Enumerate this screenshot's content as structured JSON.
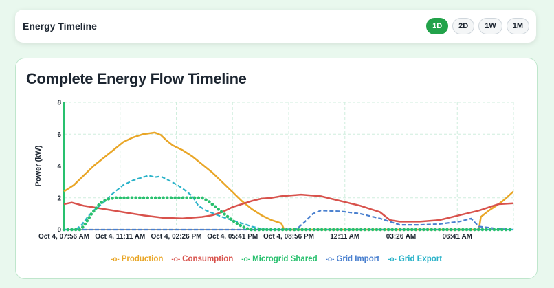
{
  "header": {
    "title": "Energy Timeline",
    "ranges": [
      {
        "label": "1D",
        "active": true
      },
      {
        "label": "2D",
        "active": false
      },
      {
        "label": "1W",
        "active": false
      },
      {
        "label": "1M",
        "active": false
      }
    ]
  },
  "chart_data": {
    "type": "line",
    "title": "Complete Energy Flow Timeline",
    "xlabel": "",
    "ylabel": "Power (kW)",
    "ylim": [
      0,
      8
    ],
    "yticks": [
      0,
      2,
      4,
      6,
      8
    ],
    "xticks": [
      "Oct 4, 07:56 AM",
      "Oct 4, 11:11 AM",
      "Oct 4, 02:26 PM",
      "Oct 4, 05:41 PM",
      "Oct 4, 08:56 PM",
      "12:11 AM",
      "03:26 AM",
      "06:41 AM"
    ],
    "xlim": [
      0,
      22.75
    ],
    "x_unit": "hours after Oct 4, 07:56 AM",
    "grid": true,
    "legend_position": "bottom",
    "series": [
      {
        "name": "Production",
        "color": "#e9a627",
        "style": "solid",
        "points": [
          [
            0,
            2.4
          ],
          [
            0.5,
            2.8
          ],
          [
            1,
            3.4
          ],
          [
            1.5,
            4.0
          ],
          [
            2,
            4.5
          ],
          [
            2.5,
            5.0
          ],
          [
            3,
            5.5
          ],
          [
            3.5,
            5.8
          ],
          [
            4,
            6.0
          ],
          [
            4.3,
            6.05
          ],
          [
            4.6,
            6.1
          ],
          [
            4.9,
            5.95
          ],
          [
            5.2,
            5.6
          ],
          [
            5.5,
            5.3
          ],
          [
            6,
            5.0
          ],
          [
            6.5,
            4.6
          ],
          [
            7,
            4.1
          ],
          [
            7.5,
            3.6
          ],
          [
            8,
            3.0
          ],
          [
            8.5,
            2.4
          ],
          [
            9,
            1.8
          ],
          [
            9.5,
            1.3
          ],
          [
            10,
            0.9
          ],
          [
            10.5,
            0.6
          ],
          [
            11,
            0.4
          ],
          [
            11.15,
            0.0
          ],
          [
            21.0,
            0.0
          ],
          [
            21.1,
            0.8
          ],
          [
            21.5,
            1.2
          ],
          [
            22,
            1.6
          ],
          [
            22.3,
            1.9
          ],
          [
            22.75,
            2.4
          ]
        ]
      },
      {
        "name": "Consumption",
        "color": "#d8524c",
        "style": "solid",
        "points": [
          [
            0,
            1.6
          ],
          [
            0.4,
            1.7
          ],
          [
            1,
            1.5
          ],
          [
            2,
            1.3
          ],
          [
            3,
            1.1
          ],
          [
            4,
            0.9
          ],
          [
            5,
            0.75
          ],
          [
            6,
            0.7
          ],
          [
            7,
            0.8
          ],
          [
            7.5,
            0.9
          ],
          [
            8,
            1.1
          ],
          [
            8.5,
            1.4
          ],
          [
            9,
            1.6
          ],
          [
            9.5,
            1.8
          ],
          [
            10,
            1.95
          ],
          [
            10.5,
            2.0
          ],
          [
            11,
            2.1
          ],
          [
            11.5,
            2.15
          ],
          [
            12,
            2.2
          ],
          [
            12.5,
            2.15
          ],
          [
            13,
            2.1
          ],
          [
            13.5,
            1.95
          ],
          [
            14,
            1.8
          ],
          [
            15,
            1.5
          ],
          [
            16,
            1.1
          ],
          [
            16.5,
            0.6
          ],
          [
            17,
            0.5
          ],
          [
            18,
            0.5
          ],
          [
            19,
            0.6
          ],
          [
            20,
            0.9
          ],
          [
            21,
            1.2
          ],
          [
            21.5,
            1.4
          ],
          [
            22,
            1.6
          ],
          [
            22.75,
            1.65
          ]
        ]
      },
      {
        "name": "Microgrid Shared",
        "color": "#28c06e",
        "style": "dots",
        "points": [
          [
            0,
            0
          ],
          [
            0.5,
            0
          ],
          [
            0.8,
            0
          ],
          [
            1,
            0.2
          ],
          [
            1.2,
            0.6
          ],
          [
            1.4,
            1.0
          ],
          [
            1.6,
            1.3
          ],
          [
            1.8,
            1.6
          ],
          [
            2,
            1.8
          ],
          [
            2.3,
            1.95
          ],
          [
            2.6,
            2.0
          ],
          [
            3,
            2.0
          ],
          [
            4,
            2.0
          ],
          [
            5,
            2.0
          ],
          [
            6,
            2.0
          ],
          [
            7,
            2.0
          ],
          [
            7.3,
            1.8
          ],
          [
            7.6,
            1.5
          ],
          [
            7.9,
            1.2
          ],
          [
            8.2,
            0.9
          ],
          [
            8.5,
            0.6
          ],
          [
            8.8,
            0.35
          ],
          [
            9.1,
            0.15
          ],
          [
            9.4,
            0
          ],
          [
            10,
            0
          ],
          [
            12,
            0
          ],
          [
            14,
            0
          ],
          [
            16,
            0
          ],
          [
            18,
            0
          ],
          [
            20,
            0
          ],
          [
            22,
            0
          ],
          [
            22.75,
            0
          ]
        ]
      },
      {
        "name": "Grid Import",
        "color": "#4a80cf",
        "style": "dashed",
        "points": [
          [
            0,
            0
          ],
          [
            9,
            0
          ],
          [
            10,
            0
          ],
          [
            11,
            0
          ],
          [
            11.8,
            0.05
          ],
          [
            12.2,
            0.5
          ],
          [
            12.6,
            1.0
          ],
          [
            13,
            1.2
          ],
          [
            14,
            1.15
          ],
          [
            15,
            1.0
          ],
          [
            16,
            0.7
          ],
          [
            17,
            0.3
          ],
          [
            18,
            0.3
          ],
          [
            19,
            0.35
          ],
          [
            20,
            0.5
          ],
          [
            20.6,
            0.7
          ],
          [
            21.0,
            0.2
          ],
          [
            21.3,
            0.15
          ],
          [
            22,
            0.05
          ],
          [
            22.75,
            0
          ]
        ]
      },
      {
        "name": "Grid Export",
        "color": "#2bb3c9",
        "style": "dashed",
        "points": [
          [
            0,
            0
          ],
          [
            0.6,
            0
          ],
          [
            0.9,
            0.3
          ],
          [
            1.2,
            0.8
          ],
          [
            1.5,
            1.2
          ],
          [
            2,
            1.7
          ],
          [
            2.5,
            2.3
          ],
          [
            3,
            2.8
          ],
          [
            3.5,
            3.1
          ],
          [
            4,
            3.3
          ],
          [
            4.3,
            3.4
          ],
          [
            4.6,
            3.3
          ],
          [
            4.9,
            3.35
          ],
          [
            5.3,
            3.1
          ],
          [
            5.6,
            2.9
          ],
          [
            6,
            2.6
          ],
          [
            6.5,
            2.1
          ],
          [
            6.8,
            1.5
          ],
          [
            7.2,
            1.2
          ],
          [
            7.6,
            1.0
          ],
          [
            8,
            0.8
          ],
          [
            8.5,
            0.6
          ],
          [
            9,
            0.4
          ],
          [
            9.5,
            0.2
          ],
          [
            10,
            0.05
          ],
          [
            10.3,
            0
          ],
          [
            12,
            0
          ],
          [
            15,
            0
          ],
          [
            18,
            0
          ],
          [
            21,
            0
          ],
          [
            22.75,
            0
          ]
        ]
      }
    ]
  }
}
